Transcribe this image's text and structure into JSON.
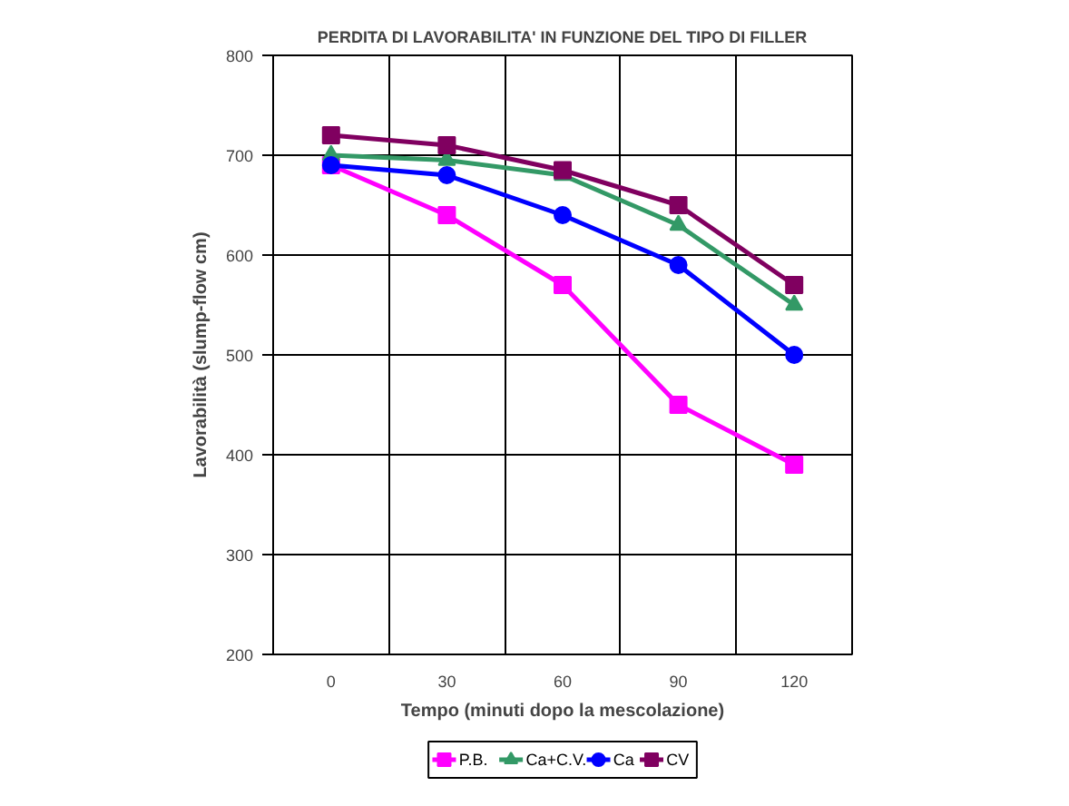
{
  "chart_data": {
    "type": "line",
    "title": "PERDITA DI LAVORABILITA' IN FUNZIONE DEL TIPO DI FILLER",
    "xlabel": "Tempo (minuti dopo la mescolazione)",
    "ylabel": "Lavorabilità (slump-flow cm)",
    "categories": [
      "0",
      "30",
      "60",
      "90",
      "120"
    ],
    "ylim": [
      200,
      800
    ],
    "yticks": [
      200,
      300,
      400,
      500,
      600,
      700,
      800
    ],
    "grid": true,
    "legend": "bottom",
    "series": [
      {
        "name": "P.B.",
        "color": "#ff00ff",
        "marker": "square",
        "values": [
          690,
          640,
          570,
          450,
          390
        ]
      },
      {
        "name": "Ca+C.V.",
        "color": "#339966",
        "marker": "triangle",
        "values": [
          700,
          695,
          680,
          630,
          550
        ]
      },
      {
        "name": "Ca",
        "color": "#0000ff",
        "marker": "circle",
        "values": [
          690,
          680,
          640,
          590,
          500
        ]
      },
      {
        "name": "CV",
        "color": "#800060",
        "marker": "cross",
        "values": [
          720,
          710,
          685,
          650,
          570
        ]
      }
    ]
  }
}
